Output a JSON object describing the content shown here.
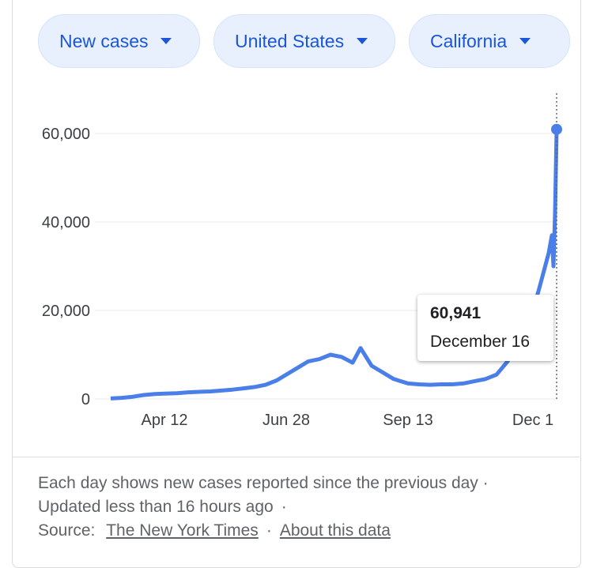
{
  "filters": {
    "metric": "New cases",
    "country": "United States",
    "region": "California"
  },
  "tooltip": {
    "value": "60,941",
    "date": "December 16"
  },
  "footer": {
    "line1": "Each day shows new cases reported since the previous day ·",
    "line2": "Updated less than 16 hours ago",
    "line2_sep": "·",
    "source_label": "Source:",
    "source_link": "The New York Times",
    "source_sep": "·",
    "about_link": "About this data"
  },
  "colors": {
    "line": "#4a7ee8",
    "grid": "#e8eaed",
    "chip_bg": "#e8f0fe",
    "chip_text": "#1a56d6"
  },
  "chart_data": {
    "type": "line",
    "ylim": [
      0,
      65000
    ],
    "yticks": [
      0,
      20000,
      40000,
      60000
    ],
    "ytick_labels": [
      "0",
      "20,000",
      "40,000",
      "60,000"
    ],
    "xticks": [
      "Apr 12",
      "Jun 28",
      "Sep 13",
      "Dec 1"
    ],
    "grid": true,
    "series": [
      {
        "points": [
          [
            "2020-03-09",
            100
          ],
          [
            "2020-03-16",
            250
          ],
          [
            "2020-03-23",
            500
          ],
          [
            "2020-03-30",
            900
          ],
          [
            "2020-04-06",
            1100
          ],
          [
            "2020-04-12",
            1200
          ],
          [
            "2020-04-20",
            1300
          ],
          [
            "2020-04-27",
            1500
          ],
          [
            "2020-05-04",
            1600
          ],
          [
            "2020-05-11",
            1700
          ],
          [
            "2020-05-18",
            1900
          ],
          [
            "2020-05-25",
            2100
          ],
          [
            "2020-06-01",
            2400
          ],
          [
            "2020-06-08",
            2700
          ],
          [
            "2020-06-15",
            3200
          ],
          [
            "2020-06-22",
            4200
          ],
          [
            "2020-06-28",
            5500
          ],
          [
            "2020-07-05",
            7000
          ],
          [
            "2020-07-12",
            8500
          ],
          [
            "2020-07-19",
            9000
          ],
          [
            "2020-07-26",
            10000
          ],
          [
            "2020-08-02",
            9500
          ],
          [
            "2020-08-09",
            8200
          ],
          [
            "2020-08-14",
            11500
          ],
          [
            "2020-08-21",
            7500
          ],
          [
            "2020-08-28",
            6000
          ],
          [
            "2020-09-04",
            4500
          ],
          [
            "2020-09-13",
            3500
          ],
          [
            "2020-09-20",
            3300
          ],
          [
            "2020-09-27",
            3200
          ],
          [
            "2020-10-04",
            3300
          ],
          [
            "2020-10-11",
            3300
          ],
          [
            "2020-10-18",
            3500
          ],
          [
            "2020-10-25",
            4000
          ],
          [
            "2020-11-01",
            4500
          ],
          [
            "2020-11-08",
            5500
          ],
          [
            "2020-11-15",
            8500
          ],
          [
            "2020-11-22",
            13000
          ],
          [
            "2020-11-29",
            18000
          ],
          [
            "2020-12-01",
            20000
          ],
          [
            "2020-12-05",
            25000
          ],
          [
            "2020-12-08",
            29000
          ],
          [
            "2020-12-11",
            33000
          ],
          [
            "2020-12-13",
            37000
          ],
          [
            "2020-12-14",
            30000
          ],
          [
            "2020-12-15",
            42000
          ],
          [
            "2020-12-16",
            60941
          ]
        ]
      }
    ]
  }
}
